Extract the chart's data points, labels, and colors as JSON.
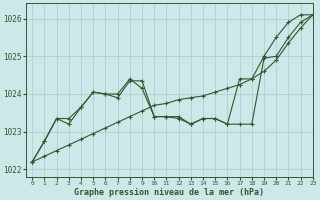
{
  "title": "Graphe pression niveau de la mer (hPa)",
  "bg_color": "#cce8e8",
  "grid_color": "#aacccc",
  "line_color": "#2d5a2d",
  "xlim": [
    -0.5,
    23
  ],
  "ylim": [
    1021.8,
    1026.4
  ],
  "yticks": [
    1022,
    1023,
    1024,
    1025,
    1026
  ],
  "xticks": [
    0,
    1,
    2,
    3,
    4,
    5,
    6,
    7,
    8,
    9,
    10,
    11,
    12,
    13,
    14,
    15,
    16,
    17,
    18,
    19,
    20,
    21,
    22,
    23
  ],
  "series1_x": [
    0,
    1,
    2,
    3,
    4,
    5,
    6,
    7,
    8,
    9,
    10,
    11,
    12,
    13,
    14,
    15,
    16,
    17,
    18,
    19,
    20,
    21,
    22,
    23
  ],
  "series1_y": [
    1022.2,
    1022.35,
    1022.5,
    1022.65,
    1022.8,
    1022.95,
    1023.1,
    1023.25,
    1023.4,
    1023.55,
    1023.7,
    1023.75,
    1023.85,
    1023.9,
    1023.95,
    1024.05,
    1024.15,
    1024.25,
    1024.4,
    1024.6,
    1024.9,
    1025.35,
    1025.75,
    1026.1
  ],
  "series2_x": [
    0,
    1,
    2,
    3,
    4,
    5,
    6,
    7,
    8,
    9,
    10,
    11,
    12,
    13,
    14,
    15,
    16,
    17,
    18,
    19,
    20,
    21,
    22,
    23
  ],
  "series2_y": [
    1022.2,
    1022.75,
    1023.35,
    1023.35,
    1023.65,
    1024.05,
    1024.0,
    1023.9,
    1024.35,
    1024.35,
    1023.4,
    1023.4,
    1023.4,
    1023.2,
    1023.35,
    1023.35,
    1023.2,
    1023.2,
    1023.2,
    1024.95,
    1025.0,
    1025.5,
    1025.9,
    1026.1
  ],
  "series3_x": [
    0,
    1,
    2,
    3,
    4,
    5,
    6,
    7,
    8,
    9,
    10,
    11,
    12,
    13,
    14,
    15,
    16,
    17,
    18,
    19,
    20,
    21,
    22,
    23
  ],
  "series3_y": [
    1022.2,
    1022.75,
    1023.35,
    1023.2,
    1023.65,
    1024.05,
    1024.0,
    1024.0,
    1024.4,
    1024.15,
    1023.4,
    1023.4,
    1023.35,
    1023.2,
    1023.35,
    1023.35,
    1023.2,
    1024.4,
    1024.4,
    1025.0,
    1025.5,
    1025.9,
    1026.1,
    1026.1
  ]
}
